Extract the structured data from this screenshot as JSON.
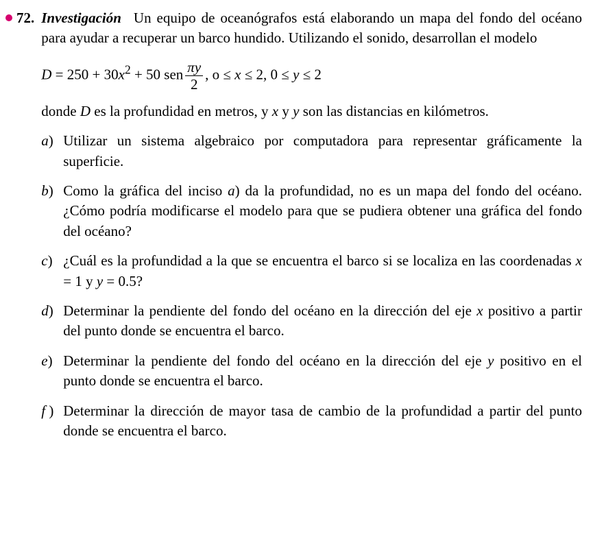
{
  "problem": {
    "number": "72.",
    "title": "Investigación",
    "intro_text": "Un equipo de oceanógrafos está elaborando un mapa del fondo del océano para ayudar a recuperar un barco hundido. Utilizando el sonido, desarrollan el modelo",
    "equation": {
      "lhs_var": "D",
      "eq1": " = 250 + 30",
      "x_var": "x",
      "sq": "2",
      "plus50sen": " + 50 sen",
      "frac_num_pi": "π",
      "frac_num_y": "y",
      "frac_den": "2",
      "domain_lead": ",  o",
      "leq1": "  ≤ ",
      "x2": "x",
      "leq2": " ≤ 2, 0 ≤ ",
      "y2": "y",
      "leq3": " ≤ 2"
    },
    "where_text_1": "donde ",
    "where_D": "D",
    "where_text_2": " es la profundidad en metros, y ",
    "where_x": "x",
    "where_text_3": " y ",
    "where_y": "y",
    "where_text_4": " son las distancias en kilómetros.",
    "items": [
      {
        "label": "a",
        "text": "Utilizar un sistema algebraico por computadora para representar gráficamente la superficie."
      },
      {
        "label": "b",
        "text_1": "Como la gráfica del inciso ",
        "a_ref": "a",
        "text_2": ") da la profundidad, no es un mapa del fondo del océano. ¿Cómo podría modificarse el modelo para que se pudiera obtener una gráfica del fondo del océano?"
      },
      {
        "label": "c",
        "text_1": "¿Cuál es la profundidad a la que se encuentra el barco si se localiza en las coordenadas ",
        "x_var": "x",
        "eq_x": " = 1 y ",
        "y_var": "y",
        "eq_y": " = 0.5?"
      },
      {
        "label": "d",
        "text_1": "Determinar la pendiente del fondo del océano en la dirección del eje ",
        "x_var": "x",
        "text_2": " positivo a partir del punto donde se encuentra el barco."
      },
      {
        "label": "e",
        "text_1": "Determinar la pendiente del fondo del océano en la dirección del eje ",
        "y_var": "y",
        "text_2": " positivo en el punto donde se encuentra el barco."
      },
      {
        "label": "f",
        "text": "Determinar la dirección de mayor tasa de cambio de la profundidad a partir del punto donde se encuentra el barco."
      }
    ]
  },
  "colors": {
    "bullet": "#d6006e",
    "text": "#000000",
    "background": "#ffffff"
  }
}
